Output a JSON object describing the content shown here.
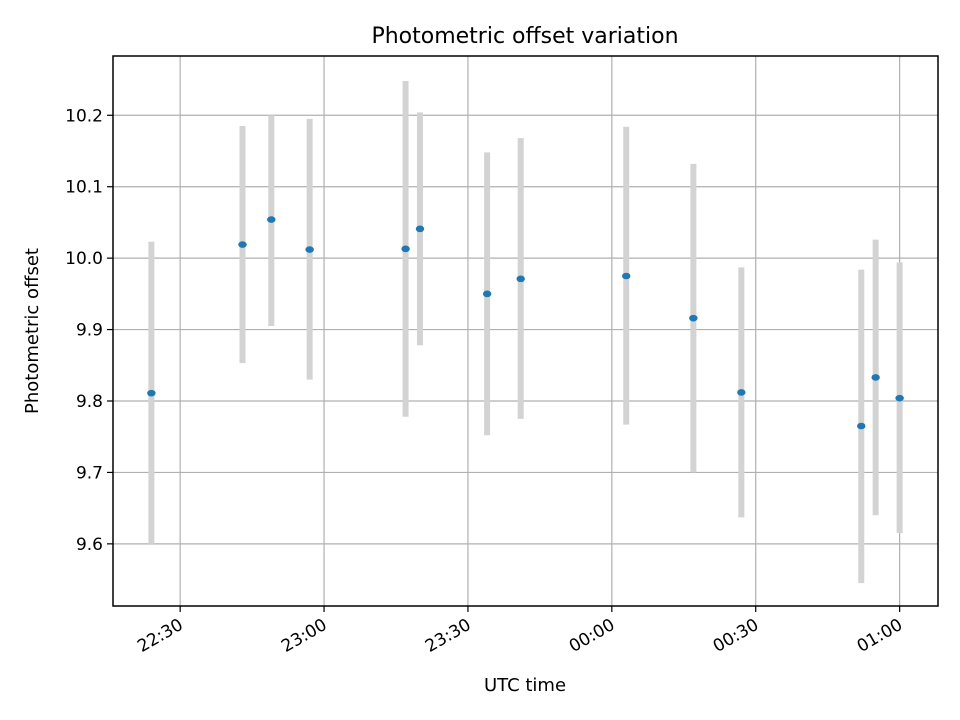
{
  "chart_data": {
    "type": "scatter",
    "title": "Photometric offset variation",
    "xlabel": "UTC time",
    "ylabel": "Photometric offset",
    "x_axis_type": "time",
    "xlim": [
      "22:16",
      "01:08"
    ],
    "ylim": [
      9.513,
      10.283
    ],
    "grid": true,
    "x_ticks": [
      "22:30",
      "23:00",
      "23:30",
      "00:00",
      "00:30",
      "01:00"
    ],
    "y_ticks": [
      "9.6",
      "9.7",
      "9.8",
      "9.9",
      "10.0",
      "10.1",
      "10.2"
    ],
    "point_color": "#1f77b4",
    "errorbar_color": "#d3d3d3",
    "points": [
      {
        "x": "22:24",
        "y": 9.811,
        "ylow": 9.6,
        "yhigh": 10.023
      },
      {
        "x": "22:43",
        "y": 10.019,
        "ylow": 9.853,
        "yhigh": 10.185
      },
      {
        "x": "22:49",
        "y": 10.054,
        "ylow": 9.905,
        "yhigh": 10.2
      },
      {
        "x": "22:57",
        "y": 10.012,
        "ylow": 9.83,
        "yhigh": 10.195
      },
      {
        "x": "23:17",
        "y": 10.013,
        "ylow": 9.778,
        "yhigh": 10.248
      },
      {
        "x": "23:20",
        "y": 10.041,
        "ylow": 9.878,
        "yhigh": 10.204
      },
      {
        "x": "23:34",
        "y": 9.95,
        "ylow": 9.752,
        "yhigh": 10.148
      },
      {
        "x": "23:41",
        "y": 9.971,
        "ylow": 9.775,
        "yhigh": 10.168
      },
      {
        "x": "00:03",
        "y": 9.975,
        "ylow": 9.767,
        "yhigh": 10.184
      },
      {
        "x": "00:17",
        "y": 9.916,
        "ylow": 9.7,
        "yhigh": 10.132
      },
      {
        "x": "00:27",
        "y": 9.812,
        "ylow": 9.637,
        "yhigh": 9.987
      },
      {
        "x": "00:52",
        "y": 9.765,
        "ylow": 9.545,
        "yhigh": 9.984
      },
      {
        "x": "00:55",
        "y": 9.833,
        "ylow": 9.64,
        "yhigh": 10.026
      },
      {
        "x": "01:00",
        "y": 9.804,
        "ylow": 9.615,
        "yhigh": 9.994
      }
    ]
  }
}
